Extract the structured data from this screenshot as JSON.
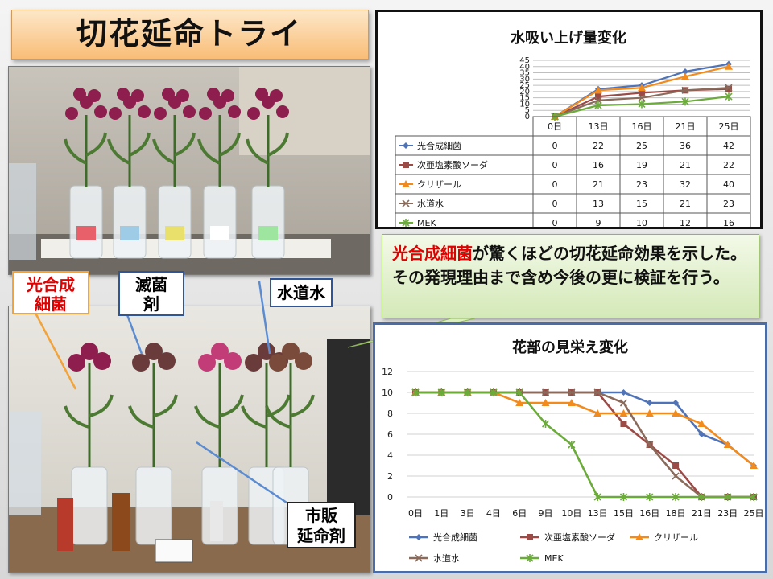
{
  "title": "切花延命トライ",
  "labels": {
    "photosynthetic": "光合成\n細菌",
    "sterilizer": "滅菌\n剤",
    "tap_water": "水道水",
    "commercial": "市販\n延命剤"
  },
  "note": {
    "highlight": "光合成細菌",
    "rest": "が驚くほどの切花延命効果を示した。その発現理由まで含め今後の更に検証を行う。"
  },
  "colors": {
    "s1": "#4f73b8",
    "s2": "#9b4a46",
    "s3": "#f28b1e",
    "s4": "#8a6a5a",
    "s5": "#6bab3a"
  },
  "chart_data": [
    {
      "type": "line",
      "title": "水吸い上げ量変化",
      "categories": [
        "0日",
        "13日",
        "16日",
        "21日",
        "25日"
      ],
      "ylim": [
        0,
        45
      ],
      "yticks": [
        0,
        5,
        10,
        15,
        20,
        25,
        30,
        35,
        40,
        45
      ],
      "grid": true,
      "legend": "data-table",
      "series": [
        {
          "name": "光合成細菌",
          "values": [
            0,
            22,
            25,
            36,
            42
          ],
          "marker": "diamond"
        },
        {
          "name": "次亜塩素酸ソーダ",
          "values": [
            0,
            16,
            19,
            21,
            22
          ],
          "marker": "square"
        },
        {
          "name": "クリザール",
          "values": [
            0,
            21,
            23,
            32,
            40
          ],
          "marker": "triangle"
        },
        {
          "name": "水道水",
          "values": [
            0,
            13,
            15,
            21,
            23
          ],
          "marker": "x"
        },
        {
          "name": "MEK",
          "values": [
            0,
            9,
            10,
            12,
            16
          ],
          "marker": "star"
        }
      ]
    },
    {
      "type": "line",
      "title": "花部の見栄え変化",
      "categories": [
        "0日",
        "1日",
        "3日",
        "4日",
        "6日",
        "9日",
        "10日",
        "13日",
        "15日",
        "16日",
        "18日",
        "21日",
        "23日",
        "25日"
      ],
      "ylim": [
        0,
        12
      ],
      "yticks": [
        0,
        2,
        4,
        6,
        8,
        10,
        12
      ],
      "grid": true,
      "legend": "bottom",
      "series": [
        {
          "name": "光合成細菌",
          "values": [
            10,
            10,
            10,
            10,
            10,
            10,
            10,
            10,
            10,
            9,
            9,
            6,
            5,
            3
          ],
          "marker": "diamond"
        },
        {
          "name": "次亜塩素酸ソーダ",
          "values": [
            10,
            10,
            10,
            10,
            10,
            10,
            10,
            10,
            7,
            5,
            3,
            0,
            0,
            0
          ],
          "marker": "square"
        },
        {
          "name": "クリザール",
          "values": [
            10,
            10,
            10,
            10,
            9,
            9,
            9,
            8,
            8,
            8,
            8,
            7,
            5,
            3
          ],
          "marker": "triangle"
        },
        {
          "name": "水道水",
          "values": [
            10,
            10,
            10,
            10,
            10,
            10,
            10,
            10,
            9,
            5,
            2,
            0,
            0,
            0
          ],
          "marker": "x"
        },
        {
          "name": "MEK",
          "values": [
            10,
            10,
            10,
            10,
            10,
            7,
            5,
            0,
            0,
            0,
            0,
            0,
            0,
            0
          ],
          "marker": "star"
        }
      ]
    }
  ]
}
